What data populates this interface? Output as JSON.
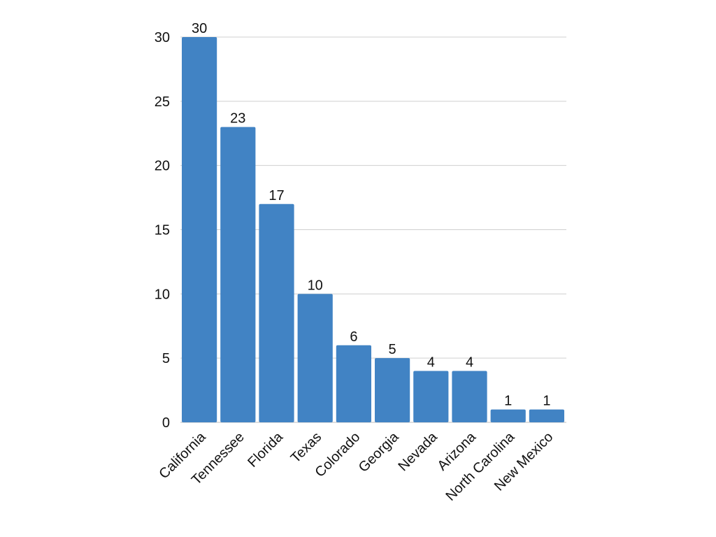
{
  "chart_data": {
    "type": "bar",
    "categories": [
      "California",
      "Tennessee",
      "Florida",
      "Texas",
      "Colorado",
      "Georgia",
      "Nevada",
      "Arizona",
      "North Carolina",
      "New Mexico"
    ],
    "values": [
      30,
      23,
      17,
      10,
      6,
      5,
      4,
      4,
      1,
      1
    ],
    "title": "",
    "xlabel": "",
    "ylabel": "",
    "ylim": [
      0,
      30
    ],
    "yticks": [
      0,
      5,
      10,
      15,
      20,
      25,
      30
    ],
    "grid": true,
    "data_labels": true,
    "bar_color": "#4183c4",
    "x_tick_rotation_deg": -45
  }
}
